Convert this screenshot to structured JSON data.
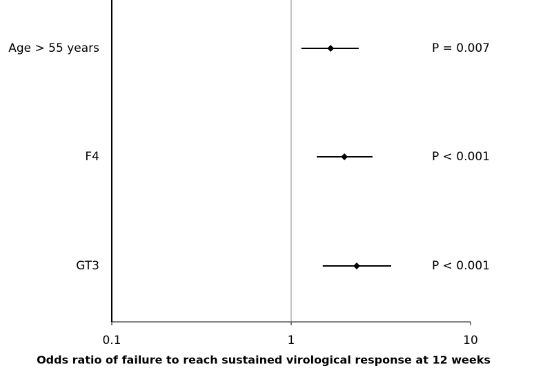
{
  "chart_data": {
    "type": "forest",
    "xlabel": "Odds ratio of failure to reach sustained virological response at 12 weeks",
    "categories": [
      "Age > 55 years",
      "F4",
      "GT3"
    ],
    "values": [
      1.66,
      1.98,
      2.32
    ],
    "lower": [
      1.14,
      1.39,
      1.5
    ],
    "upper": [
      2.38,
      2.84,
      3.61
    ],
    "p_labels": [
      "P = 0.007",
      "P < 0.001",
      "P < 0.001"
    ],
    "xlim": [
      0.1,
      10
    ],
    "xticks": [
      0.1,
      1,
      10
    ],
    "xscale": "log",
    "reference": 1,
    "color": "#000000"
  }
}
